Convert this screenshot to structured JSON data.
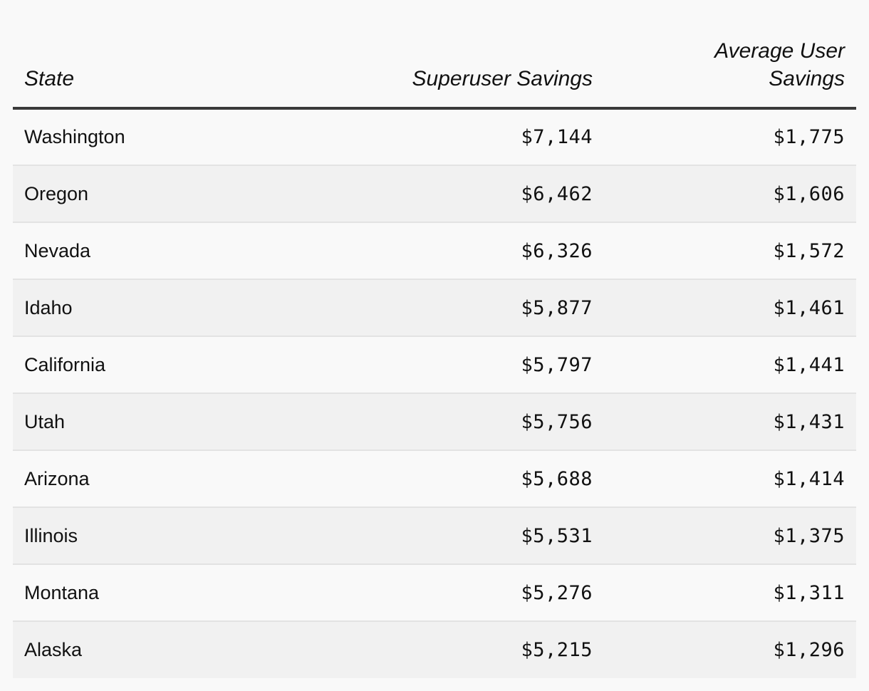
{
  "chart_data": {
    "type": "table",
    "columns": [
      "State",
      "Superuser Savings",
      "Average User Savings"
    ],
    "rows": [
      {
        "state": "Washington",
        "superuser": "$7,144",
        "average": "$1,775"
      },
      {
        "state": "Oregon",
        "superuser": "$6,462",
        "average": "$1,606"
      },
      {
        "state": "Nevada",
        "superuser": "$6,326",
        "average": "$1,572"
      },
      {
        "state": "Idaho",
        "superuser": "$5,877",
        "average": "$1,461"
      },
      {
        "state": "California",
        "superuser": "$5,797",
        "average": "$1,441"
      },
      {
        "state": "Utah",
        "superuser": "$5,756",
        "average": "$1,431"
      },
      {
        "state": "Arizona",
        "superuser": "$5,688",
        "average": "$1,414"
      },
      {
        "state": "Illinois",
        "superuser": "$5,531",
        "average": "$1,375"
      },
      {
        "state": "Montana",
        "superuser": "$5,276",
        "average": "$1,311"
      },
      {
        "state": "Alaska",
        "superuser": "$5,215",
        "average": "$1,296"
      }
    ],
    "values": {
      "superuser": [
        7144,
        6462,
        6326,
        5877,
        5797,
        5756,
        5688,
        5531,
        5276,
        5215
      ],
      "average": [
        1775,
        1606,
        1572,
        1461,
        1441,
        1431,
        1414,
        1375,
        1311,
        1296
      ]
    }
  },
  "colors": {
    "background": "#f9f9f9",
    "row_alt": "#f1f1f1",
    "header_rule": "#3a3a3a",
    "row_divider": "#e3e3e3",
    "text": "#111111"
  }
}
